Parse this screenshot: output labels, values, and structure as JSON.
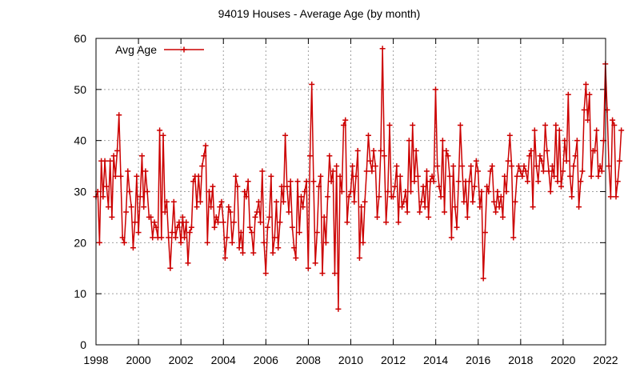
{
  "chart_data": {
    "type": "line",
    "title": "94019 Houses - Average Age (by month)",
    "legend": {
      "entries": [
        "Avg Age"
      ],
      "placement": "top-left"
    },
    "grid": true,
    "xlim": [
      1998,
      2022
    ],
    "ylim": [
      0,
      60
    ],
    "x_ticks": [
      "1998",
      "2000",
      "2002",
      "2004",
      "2006",
      "2008",
      "2010",
      "2012",
      "2014",
      "2016",
      "2018",
      "2020",
      "2022"
    ],
    "y_ticks": [
      "0",
      "10",
      "20",
      "30",
      "40",
      "50",
      "60"
    ],
    "series_color": "#cc0000",
    "series": [
      {
        "name": "Avg Age",
        "x_start": 1998,
        "step": 0.0833,
        "values": [
          29,
          30,
          20,
          36,
          29,
          36,
          31,
          27,
          36,
          25,
          37,
          33,
          38,
          45,
          33,
          21,
          20,
          26,
          34,
          30,
          27,
          19,
          24,
          33,
          22,
          29,
          37,
          27,
          34,
          30,
          25,
          25,
          21,
          24,
          23,
          21,
          42,
          21,
          41,
          26,
          28,
          21,
          15,
          22,
          28,
          21,
          23,
          24,
          20,
          25,
          21,
          24,
          16,
          22,
          23,
          32,
          33,
          27,
          33,
          28,
          35,
          37,
          39,
          20,
          30,
          27,
          31,
          23,
          25,
          24,
          27,
          28,
          24,
          17,
          21,
          27,
          26,
          20,
          24,
          33,
          31,
          19,
          22,
          18,
          30,
          29,
          32,
          23,
          22,
          18,
          25,
          26,
          28,
          24,
          34,
          20,
          14,
          23,
          25,
          33,
          18,
          21,
          28,
          19,
          24,
          31,
          28,
          41,
          31,
          26,
          32,
          23,
          19,
          17,
          32,
          22,
          29,
          27,
          30,
          32,
          15,
          37,
          51,
          32,
          16,
          22,
          31,
          33,
          14,
          25,
          20,
          29,
          37,
          32,
          34,
          14,
          35,
          7,
          33,
          30,
          43,
          44,
          24,
          29,
          30,
          35,
          28,
          33,
          38,
          17,
          27,
          20,
          28,
          34,
          41,
          36,
          34,
          38,
          35,
          25,
          29,
          38,
          58,
          37,
          24,
          30,
          43,
          29,
          29,
          31,
          35,
          24,
          33,
          27,
          28,
          30,
          26,
          40,
          30,
          43,
          32,
          38,
          33,
          26,
          28,
          31,
          27,
          34,
          25,
          32,
          33,
          32,
          50,
          35,
          31,
          29,
          40,
          26,
          38,
          37,
          33,
          21,
          35,
          27,
          23,
          32,
          43,
          35,
          28,
          32,
          25,
          32,
          35,
          28,
          31,
          36,
          34,
          27,
          30,
          13,
          22,
          31,
          30,
          34,
          35,
          28,
          26,
          30,
          27,
          29,
          25,
          33,
          30,
          36,
          41,
          35,
          21,
          28,
          33,
          35,
          34,
          33,
          35,
          34,
          32,
          37,
          38,
          27,
          42,
          35,
          32,
          37,
          36,
          34,
          43,
          38,
          34,
          30,
          35,
          33,
          43,
          32,
          42,
          31,
          34,
          40,
          36,
          49,
          33,
          29,
          35,
          37,
          40,
          27,
          32,
          34,
          46,
          51,
          44,
          49,
          33,
          38,
          38,
          42,
          33,
          35,
          34,
          40,
          55,
          46,
          35,
          29,
          44,
          43,
          29,
          32,
          36,
          42
        ]
      }
    ]
  }
}
